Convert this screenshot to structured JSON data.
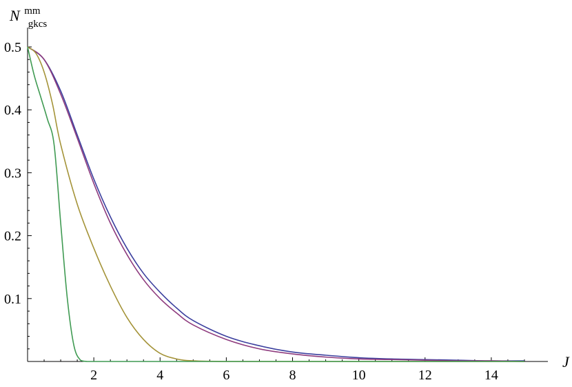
{
  "chart_data": {
    "type": "line",
    "xlabel": "J",
    "ylabel": {
      "main": "N",
      "sup": "mm",
      "sub": "gkcs"
    },
    "xlim": [
      0,
      15.5
    ],
    "ylim": [
      0,
      0.5
    ],
    "x_ticks": [
      2,
      4,
      6,
      8,
      10,
      12,
      14
    ],
    "y_ticks": [
      0.1,
      0.2,
      0.3,
      0.4,
      0.5
    ],
    "x_tick_labels": [
      "2",
      "4",
      "6",
      "8",
      "10",
      "12",
      "14"
    ],
    "y_tick_labels": [
      "0.1",
      "0.2",
      "0.3",
      "0.4",
      "0.5"
    ],
    "grid": false,
    "legend": "none",
    "series": [
      {
        "color": "#3b3f9e",
        "x": [
          0,
          0.5,
          1,
          1.5,
          2,
          2.5,
          3,
          3.5,
          4,
          4.5,
          5,
          6,
          7,
          8,
          9,
          10,
          11,
          12,
          13,
          14,
          15
        ],
        "y": [
          0.5,
          0.48,
          0.43,
          0.36,
          0.29,
          0.23,
          0.18,
          0.14,
          0.11,
          0.085,
          0.065,
          0.04,
          0.025,
          0.015,
          0.01,
          0.006,
          0.004,
          0.003,
          0.002,
          0.001,
          0.001
        ]
      },
      {
        "color": "#8e3b7e",
        "x": [
          0,
          0.5,
          1,
          1.5,
          2,
          2.5,
          3,
          3.5,
          4,
          4.5,
          5,
          6,
          7,
          8,
          9,
          10,
          11,
          12,
          13,
          14,
          15
        ],
        "y": [
          0.5,
          0.48,
          0.425,
          0.355,
          0.283,
          0.22,
          0.17,
          0.13,
          0.1,
          0.077,
          0.058,
          0.035,
          0.02,
          0.012,
          0.007,
          0.004,
          0.003,
          0.002,
          0.001,
          0.001,
          0.0
        ]
      },
      {
        "color": "#a49338",
        "x": [
          0,
          0.25,
          0.5,
          0.75,
          1,
          1.5,
          2,
          2.5,
          3,
          3.5,
          4,
          4.5,
          5,
          6,
          8,
          10,
          12,
          15
        ],
        "y": [
          0.5,
          0.49,
          0.46,
          0.41,
          0.345,
          0.25,
          0.18,
          0.12,
          0.07,
          0.035,
          0.013,
          0.004,
          0.001,
          0,
          0,
          0,
          0,
          0
        ]
      },
      {
        "color": "#3f9a52",
        "x": [
          0,
          0.2,
          0.4,
          0.6,
          0.8,
          1,
          1.2,
          1.4,
          1.6,
          1.8,
          2,
          4,
          6,
          8,
          10,
          12,
          15
        ],
        "y": [
          0.5,
          0.455,
          0.42,
          0.385,
          0.345,
          0.22,
          0.1,
          0.025,
          0.002,
          0,
          0,
          0,
          0,
          0,
          0,
          0,
          0
        ]
      }
    ]
  }
}
